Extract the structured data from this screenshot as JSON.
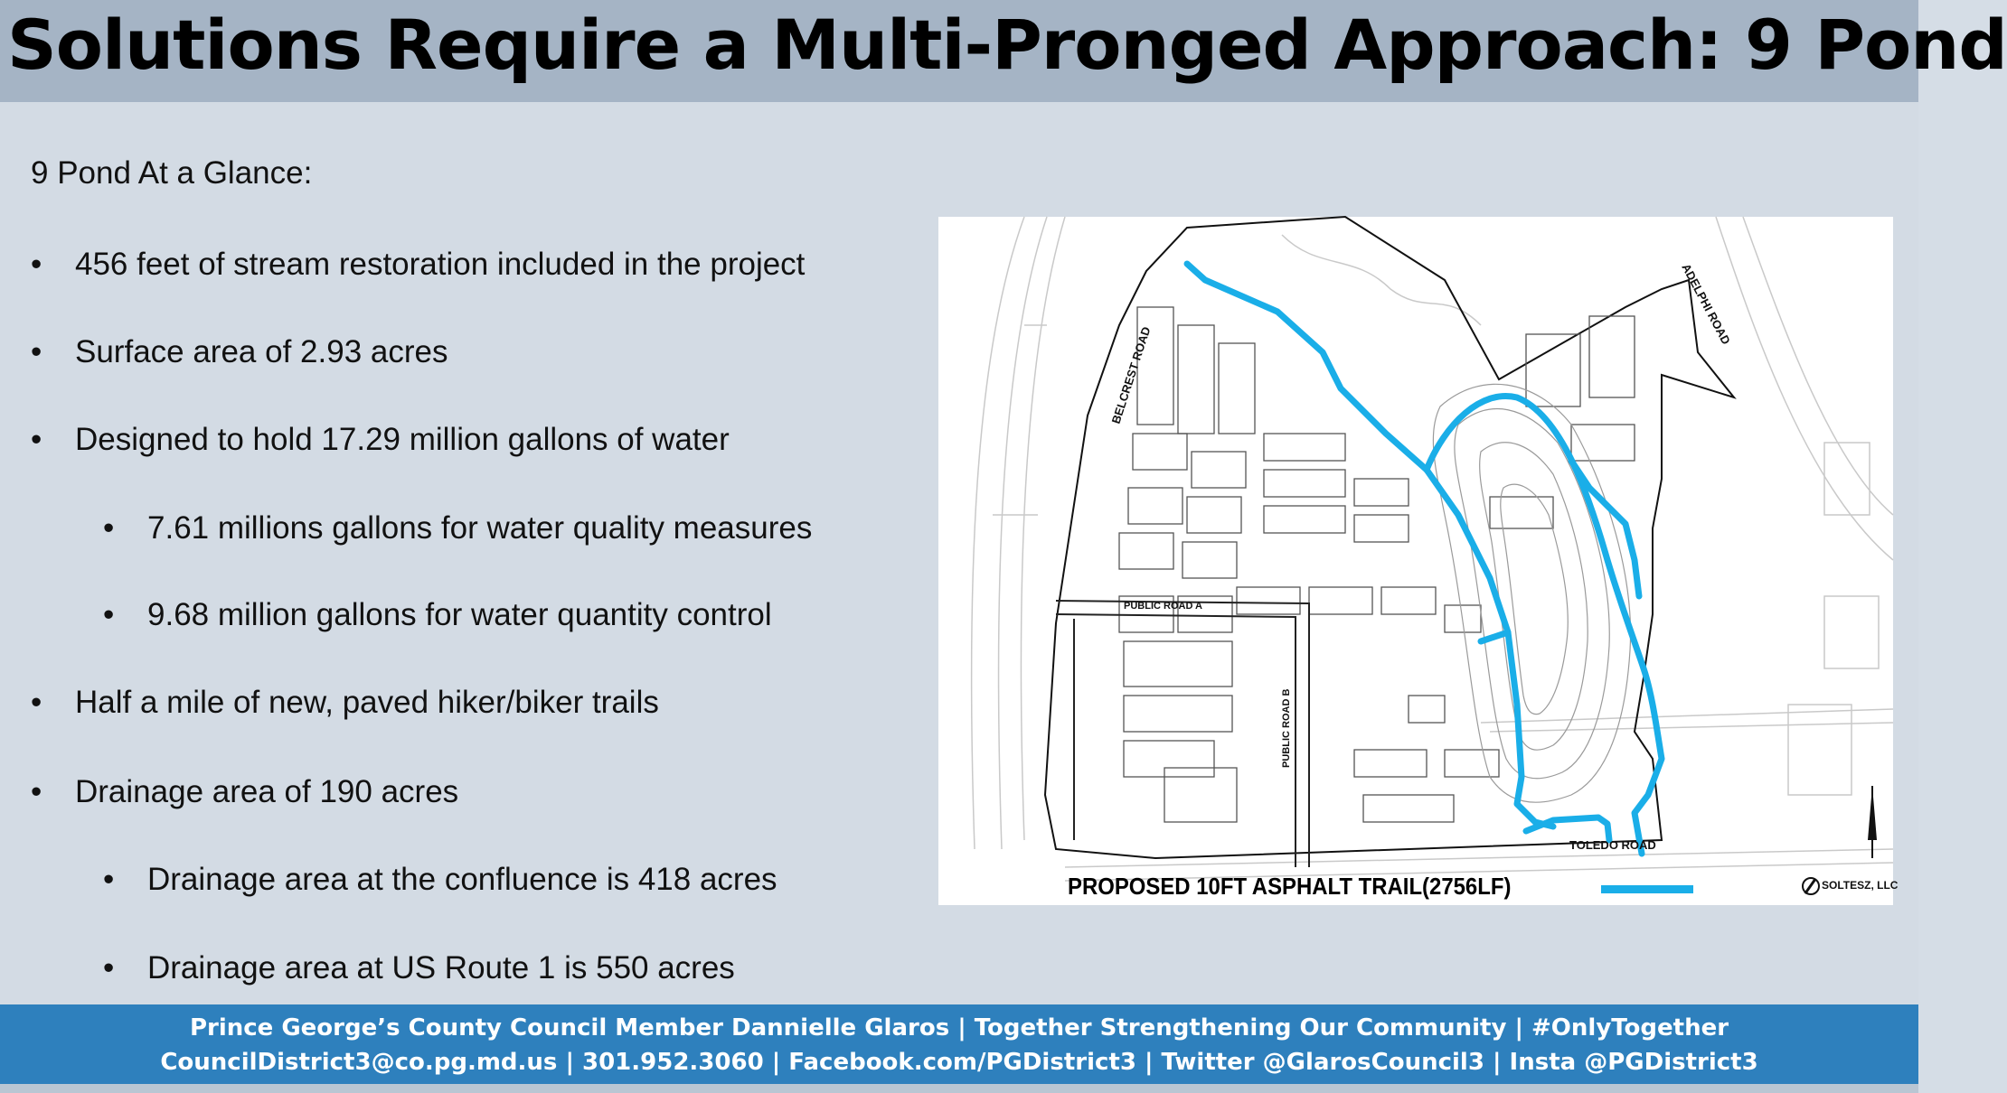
{
  "slide": {
    "title": "Solutions Require a Multi-Pronged Approach: 9 Pond",
    "heading": "9 Pond At a Glance:",
    "bullet_glyph": "•",
    "bullets": [
      {
        "text": "456 feet of stream restoration included in the project"
      },
      {
        "text": "Surface area of 2.93 acres"
      },
      {
        "text": "Designed to hold 17.29 million gallons of water"
      },
      {
        "text": "7.61 millions gallons for water quality measures"
      },
      {
        "text": "9.68 million gallons for water quantity control"
      },
      {
        "text": "Half a mile of new, paved hiker/biker trails"
      },
      {
        "text": "Drainage area of 190 acres"
      },
      {
        "text": "Drainage area at the confluence is 418 acres"
      },
      {
        "text": "Drainage area at US Route 1 is 550 acres"
      }
    ]
  },
  "map": {
    "road_labels": {
      "belcrest": "BELCREST ROAD",
      "adelphi": "ADELPHI ROAD",
      "public_road_a": "PUBLIC ROAD A",
      "public_road_b": "PUBLIC ROAD B",
      "toledo": "TOLEDO ROAD"
    },
    "caption": "PROPOSED 10FT ASPHALT TRAIL(2756LF)",
    "firm_label": "SOLTESZ, LLC",
    "trail_color": "#1aaee8"
  },
  "footer": {
    "line1": "Prince George’s County Council Member Dannielle Glaros | Together Strengthening Our Community | #OnlyTogether",
    "line2": "CouncilDistrict3@co.pg.md.us | 301.952.3060 | Facebook.com/PGDistrict3 | Twitter @GlarosCouncil3 | Insta @PGDistrict3"
  },
  "colors": {
    "title_bar": "#a5b4c5",
    "background": "#d3dbe4",
    "footer": "#2e80bd"
  }
}
